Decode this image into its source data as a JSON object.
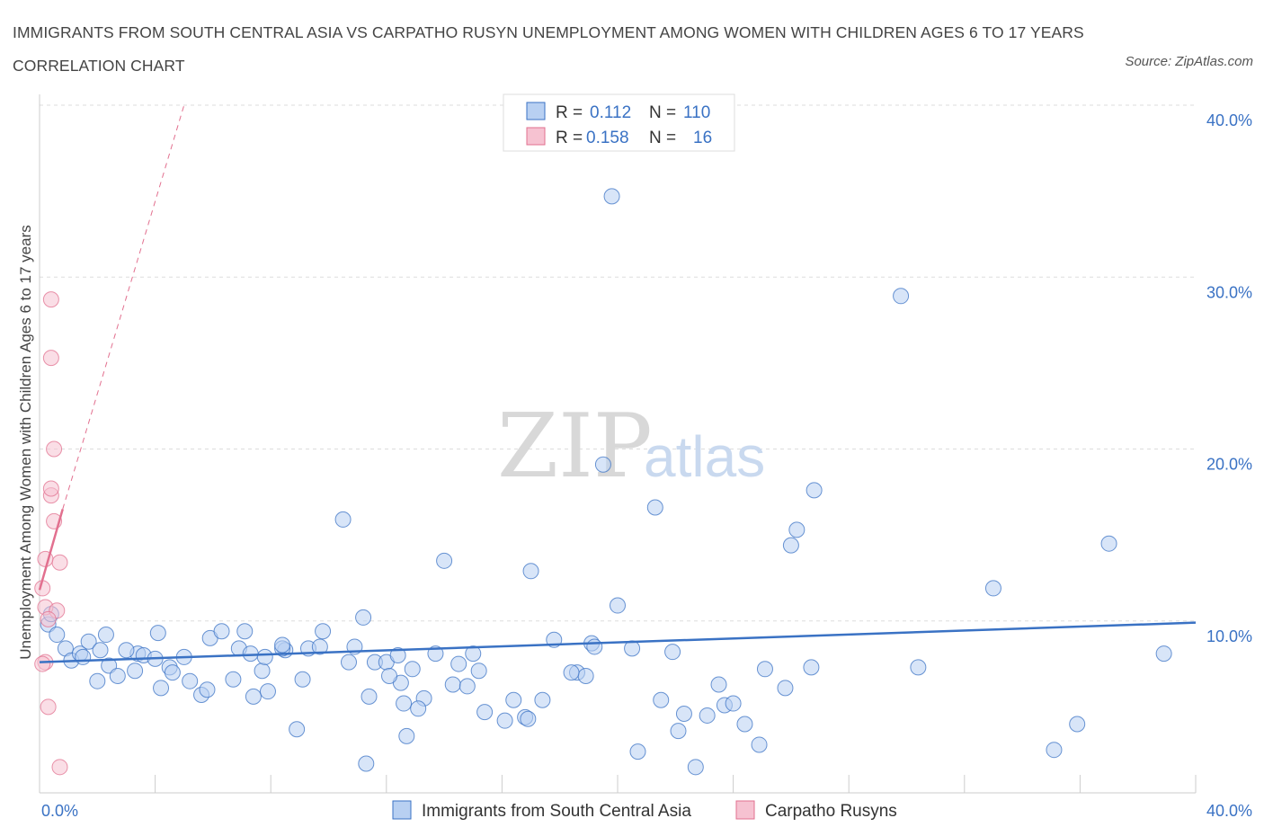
{
  "title": "IMMIGRANTS FROM SOUTH CENTRAL ASIA VS CARPATHO RUSYN UNEMPLOYMENT AMONG WOMEN WITH CHILDREN AGES 6 TO 17 YEARS CORRELATION CHART",
  "source": "Source: ZipAtlas.com",
  "watermark": {
    "zip": "ZIP",
    "atlas": "atlas"
  },
  "colors": {
    "blue": "#3a72c4",
    "blue_fill": "#b8d0f2",
    "pink": "#e2708f",
    "pink_fill": "#f6c2d1",
    "grid": "#dddddd"
  },
  "legend_top": {
    "rows": [
      {
        "r_label": "R =",
        "r_value": "0.112",
        "n_label": "N =",
        "n_value": "110"
      },
      {
        "r_label": "R =",
        "r_value": "0.158",
        "n_label": "N =",
        "n_value": "16"
      }
    ]
  },
  "legend_bottom": [
    "Immigrants from South Central Asia",
    "Carpatho Rusyns"
  ],
  "chart_data": {
    "type": "scatter",
    "title": "IMMIGRANTS FROM SOUTH CENTRAL ASIA VS CARPATHO RUSYN UNEMPLOYMENT AMONG WOMEN WITH CHILDREN AGES 6 TO 17 YEARS CORRELATION CHART",
    "xlabel": "",
    "ylabel": "Unemployment Among Women with Children Ages 6 to 17 years",
    "xlim": [
      0,
      40
    ],
    "ylim": [
      0,
      40
    ],
    "x_tick_labels": [
      "0.0%",
      "40.0%"
    ],
    "y_tick_labels": [
      "10.0%",
      "20.0%",
      "30.0%",
      "40.0%"
    ],
    "y_ticks": [
      10,
      20,
      30,
      40
    ],
    "grid": true,
    "legend_position": "top-center",
    "series": [
      {
        "name": "Immigrants from South Central Asia",
        "color": "#3a72c4",
        "r": 0.112,
        "n": 110,
        "trend": {
          "x": [
            0,
            40
          ],
          "y": [
            7.6,
            9.9
          ]
        },
        "points": [
          [
            0.3,
            9.8
          ],
          [
            0.6,
            9.2
          ],
          [
            0.9,
            8.4
          ],
          [
            1.1,
            7.7
          ],
          [
            0.4,
            10.4
          ],
          [
            1.4,
            8.1
          ],
          [
            1.7,
            8.8
          ],
          [
            1.5,
            7.9
          ],
          [
            2.1,
            8.3
          ],
          [
            2.4,
            7.4
          ],
          [
            2.7,
            6.8
          ],
          [
            2.0,
            6.5
          ],
          [
            3.4,
            8.1
          ],
          [
            3.6,
            8.0
          ],
          [
            3.3,
            7.1
          ],
          [
            4.0,
            7.8
          ],
          [
            4.2,
            6.1
          ],
          [
            4.5,
            7.3
          ],
          [
            4.6,
            7.0
          ],
          [
            5.2,
            6.5
          ],
          [
            5.0,
            7.9
          ],
          [
            5.6,
            5.7
          ],
          [
            5.9,
            9.0
          ],
          [
            5.8,
            6.0
          ],
          [
            6.7,
            6.6
          ],
          [
            6.9,
            8.4
          ],
          [
            7.1,
            9.4
          ],
          [
            7.4,
            5.6
          ],
          [
            7.3,
            8.1
          ],
          [
            7.7,
            7.1
          ],
          [
            7.9,
            5.9
          ],
          [
            8.5,
            8.3
          ],
          [
            8.4,
            8.4
          ],
          [
            9.3,
            8.4
          ],
          [
            9.7,
            8.5
          ],
          [
            8.9,
            3.7
          ],
          [
            10.5,
            15.9
          ],
          [
            11.2,
            10.2
          ],
          [
            10.9,
            8.5
          ],
          [
            11.6,
            7.6
          ],
          [
            11.4,
            5.6
          ],
          [
            11.3,
            1.7
          ],
          [
            12.0,
            7.6
          ],
          [
            12.5,
            6.4
          ],
          [
            12.6,
            5.2
          ],
          [
            12.7,
            3.3
          ],
          [
            12.4,
            8.0
          ],
          [
            12.9,
            7.2
          ],
          [
            13.3,
            5.5
          ],
          [
            13.7,
            8.1
          ],
          [
            14.5,
            7.5
          ],
          [
            14.3,
            6.3
          ],
          [
            14.0,
            13.5
          ],
          [
            15.2,
            7.1
          ],
          [
            15.4,
            4.7
          ],
          [
            16.1,
            4.2
          ],
          [
            16.4,
            5.4
          ],
          [
            16.8,
            4.4
          ],
          [
            17.0,
            12.9
          ],
          [
            17.4,
            5.4
          ],
          [
            17.8,
            8.9
          ],
          [
            18.6,
            7.0
          ],
          [
            18.9,
            6.8
          ],
          [
            19.1,
            8.7
          ],
          [
            19.5,
            19.1
          ],
          [
            20.0,
            10.9
          ],
          [
            19.8,
            34.7
          ],
          [
            20.5,
            8.4
          ],
          [
            21.3,
            16.6
          ],
          [
            21.5,
            5.4
          ],
          [
            22.1,
            3.6
          ],
          [
            22.3,
            4.6
          ],
          [
            22.7,
            1.5
          ],
          [
            23.1,
            4.5
          ],
          [
            23.7,
            5.1
          ],
          [
            24.4,
            4.0
          ],
          [
            24.9,
            2.8
          ],
          [
            25.1,
            7.2
          ],
          [
            25.8,
            6.1
          ],
          [
            26.0,
            14.4
          ],
          [
            26.2,
            15.3
          ],
          [
            26.7,
            7.3
          ],
          [
            26.8,
            17.6
          ],
          [
            29.8,
            28.9
          ],
          [
            30.4,
            7.3
          ],
          [
            33.0,
            11.9
          ],
          [
            35.1,
            2.5
          ],
          [
            35.9,
            4.0
          ],
          [
            37.0,
            14.5
          ],
          [
            38.9,
            8.1
          ],
          [
            6.3,
            9.4
          ],
          [
            4.1,
            9.3
          ],
          [
            3.0,
            8.3
          ],
          [
            2.3,
            9.2
          ],
          [
            9.8,
            9.4
          ],
          [
            8.4,
            8.6
          ],
          [
            10.7,
            7.6
          ],
          [
            13.1,
            4.9
          ],
          [
            16.9,
            4.3
          ],
          [
            18.4,
            7.0
          ],
          [
            19.2,
            8.5
          ],
          [
            21.9,
            8.2
          ],
          [
            23.5,
            6.3
          ],
          [
            24.0,
            5.2
          ],
          [
            20.7,
            2.4
          ],
          [
            14.8,
            6.2
          ],
          [
            15.0,
            8.1
          ],
          [
            12.1,
            6.8
          ],
          [
            9.1,
            6.6
          ],
          [
            7.8,
            7.9
          ]
        ]
      },
      {
        "name": "Carpatho Rusyns",
        "color": "#e2708f",
        "r": 0.158,
        "n": 16,
        "trend": {
          "x": [
            0,
            0.8
          ],
          "y": [
            11.8,
            16.5
          ],
          "dashed_x": [
            0.8,
            5.0
          ],
          "dashed_y": [
            16.5,
            40.0
          ]
        },
        "points": [
          [
            0.4,
            28.7
          ],
          [
            0.4,
            25.3
          ],
          [
            0.5,
            20.0
          ],
          [
            0.4,
            17.3
          ],
          [
            0.4,
            17.7
          ],
          [
            0.5,
            15.8
          ],
          [
            0.7,
            13.4
          ],
          [
            0.2,
            13.6
          ],
          [
            0.1,
            11.9
          ],
          [
            0.2,
            10.8
          ],
          [
            0.6,
            10.6
          ],
          [
            0.3,
            10.1
          ],
          [
            0.2,
            7.6
          ],
          [
            0.1,
            7.5
          ],
          [
            0.3,
            5.0
          ],
          [
            0.7,
            1.5
          ]
        ]
      }
    ]
  }
}
